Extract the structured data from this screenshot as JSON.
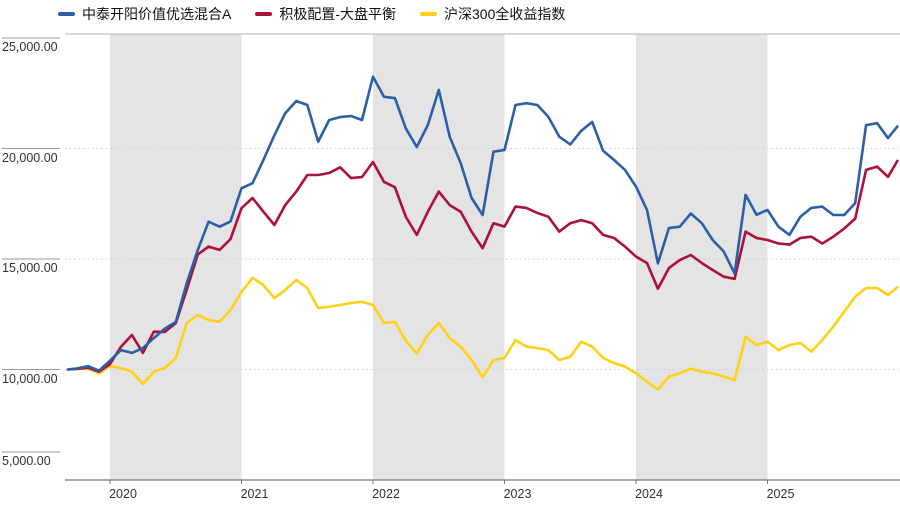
{
  "chart_data": {
    "type": "line",
    "title": "",
    "x_axis": {
      "years": [
        "2020",
        "2021",
        "2022",
        "2023",
        "2024",
        "2025"
      ],
      "x_start": "2019-09",
      "x_end": "2025-12",
      "interval": "monthly",
      "note": "first point is fund inception (early Sep 2019) at normalized value 10000"
    },
    "y_axis": {
      "tick_values": [
        25000,
        20000,
        15000,
        10000,
        5000
      ],
      "tick_labels": [
        "25,000.00",
        "20,000.00",
        "15,000.00",
        "10,000.00",
        "5,000.00"
      ],
      "range": [
        5000,
        25200
      ],
      "grid": "dotted"
    },
    "normalized_start": 10000,
    "shaded_year_bands": [
      "2020",
      "2022",
      "2024"
    ],
    "style": {
      "band_color": "#e4e4e4",
      "grid_color": "#cccccc",
      "axis_color": "#777777",
      "border_color": "#b3b3b3",
      "text_color": "#333333",
      "background": "#ffffff"
    },
    "series": [
      {
        "name": "中泰开阳价值优选混合A",
        "color": "#2b5fa8",
        "values": [
          10000,
          10050,
          10150,
          9950,
          10400,
          10880,
          10750,
          10970,
          11420,
          11850,
          12150,
          13900,
          15400,
          16690,
          16460,
          16700,
          18200,
          18430,
          19480,
          20600,
          21600,
          22150,
          21970,
          20310,
          21290,
          21420,
          21470,
          21290,
          23250,
          22340,
          22280,
          20900,
          20070,
          21060,
          22650,
          20535,
          19340,
          17760,
          16990,
          19855,
          19930,
          21970,
          22050,
          21970,
          21440,
          20535,
          20180,
          20800,
          21200,
          19900,
          19480,
          19030,
          18275,
          17220,
          14800,
          16400,
          16460,
          17060,
          16620,
          15860,
          15340,
          14350,
          17900,
          17000,
          17220,
          16460,
          16090,
          16915,
          17310,
          17370,
          16990,
          16990,
          17530,
          21060,
          21150,
          20470,
          21000
        ]
      },
      {
        "name": "积极配置-大盘平衡",
        "color": "#ad1038",
        "values": [
          10000,
          10030,
          10080,
          9900,
          10250,
          11030,
          11560,
          10750,
          11710,
          11700,
          12100,
          13600,
          15200,
          15560,
          15410,
          15900,
          17300,
          17760,
          17140,
          16540,
          17450,
          18050,
          18800,
          18800,
          18890,
          19150,
          18660,
          18710,
          19390,
          18490,
          18250,
          16900,
          16090,
          17140,
          18050,
          17440,
          17140,
          16240,
          15490,
          16620,
          16465,
          17370,
          17310,
          17080,
          16915,
          16240,
          16620,
          16760,
          16620,
          16090,
          15950,
          15560,
          15110,
          14820,
          13650,
          14590,
          14950,
          15180,
          14820,
          14500,
          14200,
          14100,
          16240,
          15950,
          15860,
          15700,
          15650,
          15950,
          16010,
          15700,
          16010,
          16380,
          16830,
          19030,
          19180,
          18720,
          19440
        ]
      },
      {
        "name": "沪深300全收益指数",
        "color": "#ffd014",
        "values": [
          10000,
          10020,
          10040,
          9820,
          10150,
          10070,
          9900,
          9350,
          9900,
          10070,
          10520,
          12100,
          12470,
          12240,
          12160,
          12690,
          13500,
          14150,
          13820,
          13230,
          13600,
          14050,
          13690,
          12780,
          12840,
          12920,
          13010,
          13070,
          12920,
          12100,
          12150,
          11300,
          10730,
          11560,
          12100,
          11425,
          11030,
          10430,
          9650,
          10430,
          10520,
          11335,
          11030,
          10970,
          10880,
          10430,
          10580,
          11260,
          11030,
          10520,
          10290,
          10130,
          9830,
          9450,
          9100,
          9680,
          9830,
          10040,
          9900,
          9830,
          9680,
          9525,
          11485,
          11110,
          11260,
          10880,
          11110,
          11200,
          10810,
          11335,
          11940,
          12615,
          13295,
          13690,
          13690,
          13370,
          13720
        ]
      }
    ]
  },
  "legend": {
    "items": [
      {
        "label": "中泰开阳价值优选混合A",
        "color": "#2b5fa8"
      },
      {
        "label": "积极配置-大盘平衡",
        "color": "#ad1038"
      },
      {
        "label": "沪深300全收益指数",
        "color": "#ffd014"
      }
    ]
  }
}
